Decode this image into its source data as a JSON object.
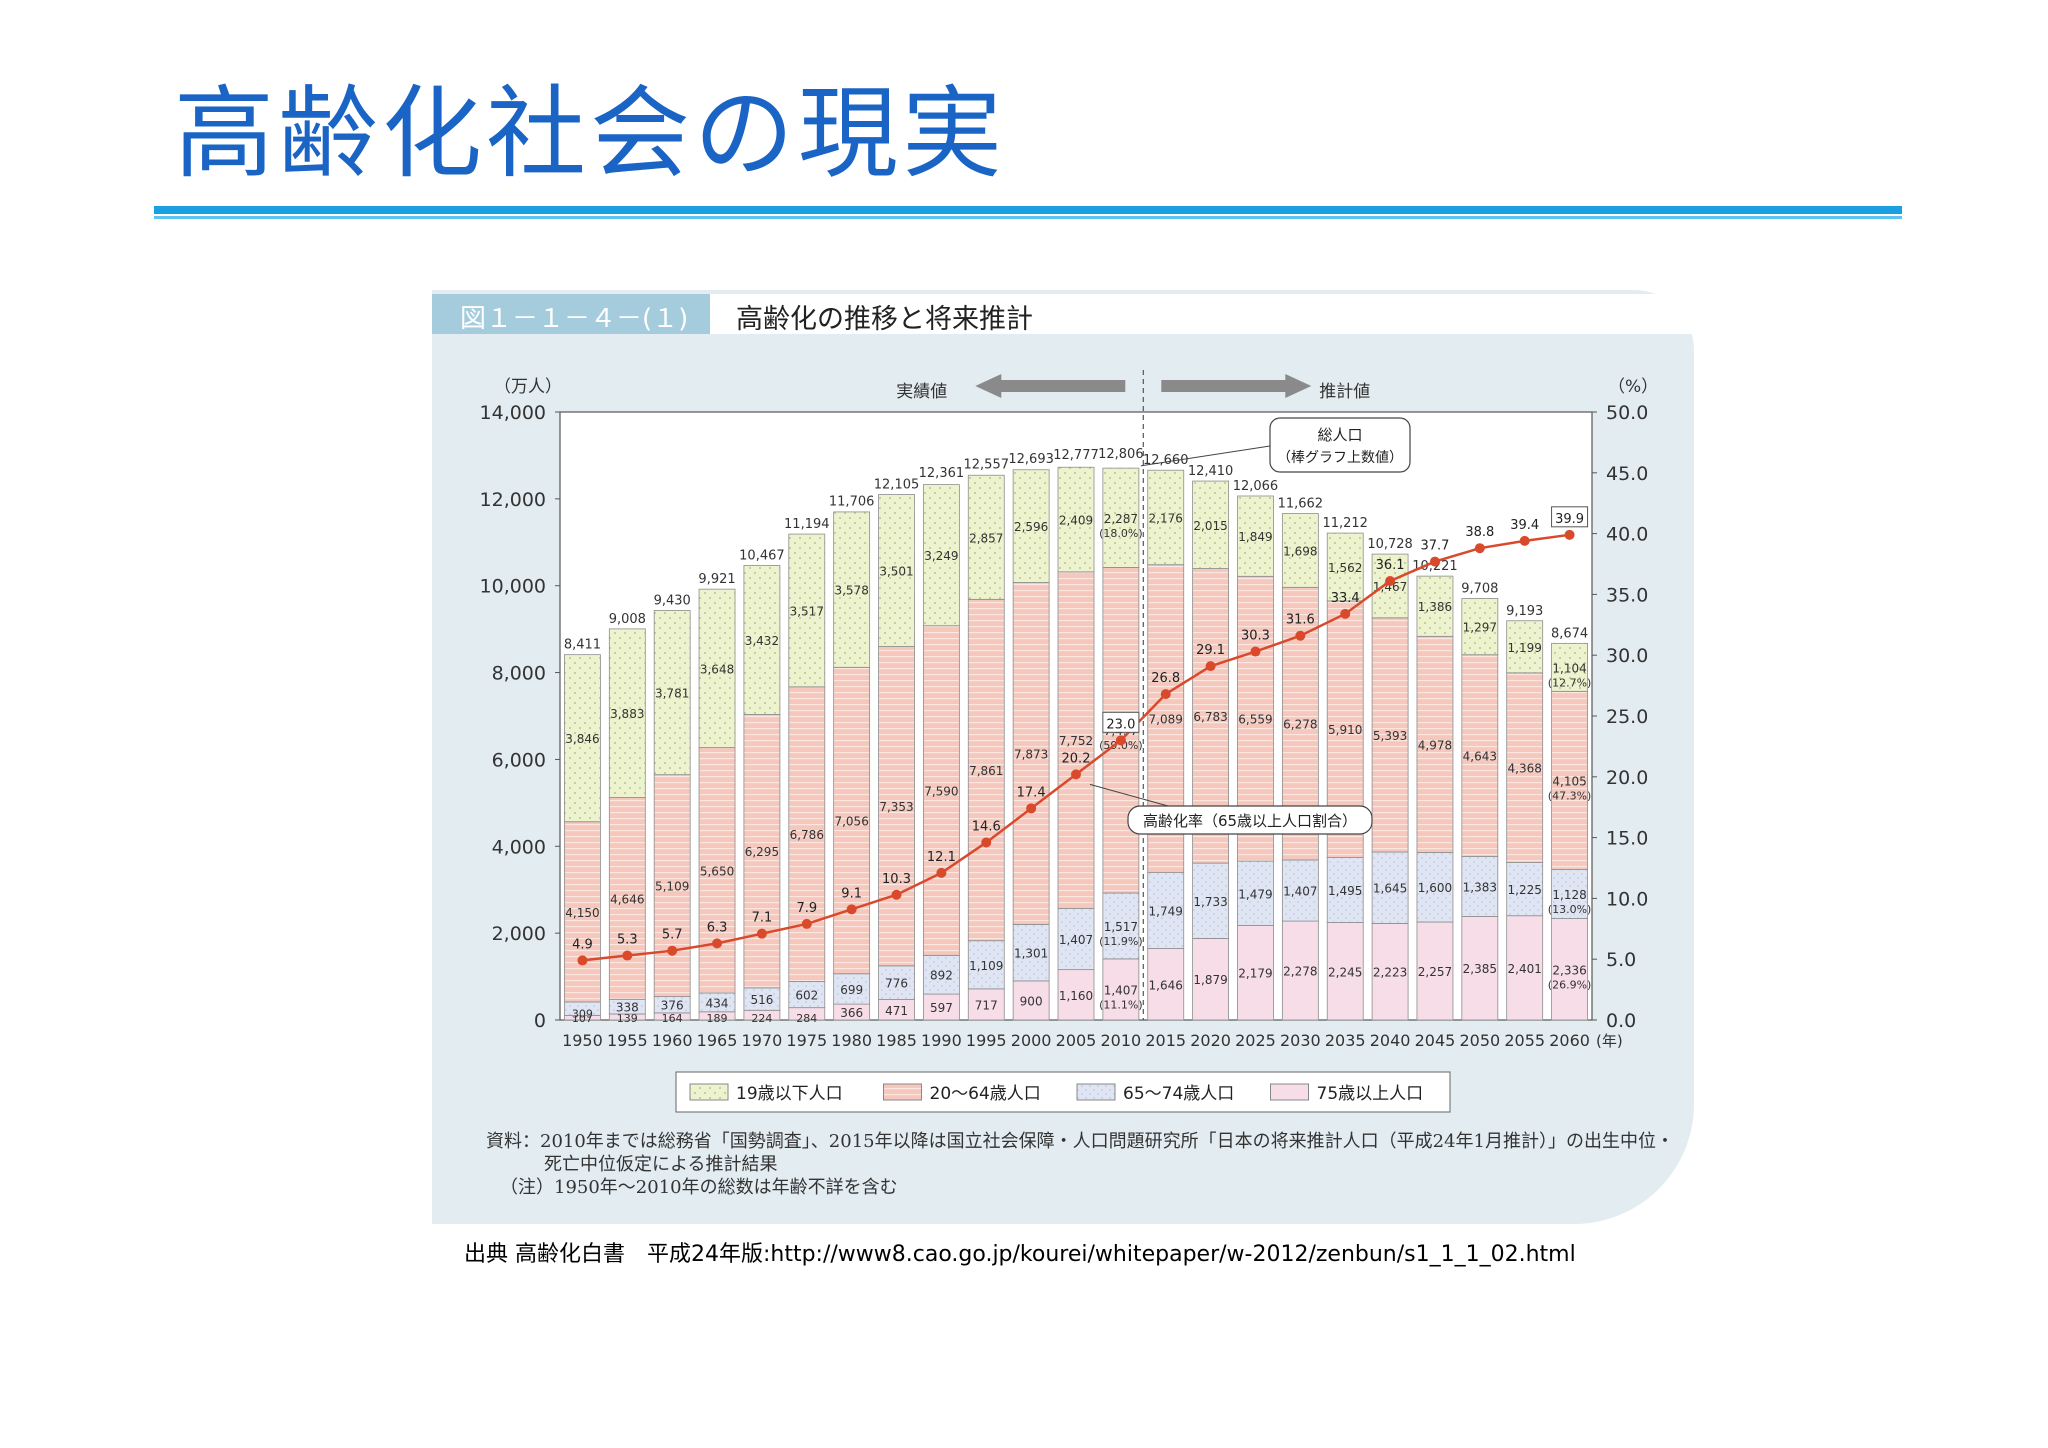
{
  "slide": {
    "title": "高齢化社会の現実",
    "citation": "出典 高齢化白書　平成24年版:http://www8.cao.go.jp/kourei/whitepaper/w-2012/zenbun/s1_1_1_02.html"
  },
  "figure": {
    "label": "図１－１－４－(１)",
    "title": "高齢化の推移と将来推計",
    "source_lines": [
      "資料：2010年までは総務省「国勢調査」、2015年以降は国立社会保障・人口問題研究所「日本の将来推計人口（平成24年1月推計）」の出生中位・",
      "死亡中位仮定による推計結果",
      "（注）1950年～2010年の総数は年齢不詳を含む"
    ]
  },
  "colors": {
    "under19": "#eef3cf",
    "age20_64": "#f5c7bd",
    "age65_74": "#dfe5f3",
    "age75plus": "#f6dde7",
    "rate_line": "#d94a2c",
    "arrow": "#8a8a8a",
    "tab_blue": "#a5ccdc",
    "title_blue": "#1a64c6",
    "rule_blue": "#1aa0e0"
  },
  "chart_data": {
    "type": "bar",
    "stacked": true,
    "y_left_unit": "（万人）",
    "y_right_unit": "（%）",
    "x_unit": "(年)",
    "ylim_left": [
      0,
      14000
    ],
    "ylim_right": [
      0,
      50
    ],
    "y_left_ticks": [
      "0",
      "2,000",
      "4,000",
      "6,000",
      "8,000",
      "10,000",
      "12,000",
      "14,000"
    ],
    "y_right_ticks": [
      "0.0",
      "5.0",
      "10.0",
      "15.0",
      "20.0",
      "25.0",
      "30.0",
      "35.0",
      "40.0",
      "45.0",
      "50.0"
    ],
    "categories": [
      "1950",
      "1955",
      "1960",
      "1965",
      "1970",
      "1975",
      "1980",
      "1985",
      "1990",
      "1995",
      "2000",
      "2005",
      "2010",
      "2015",
      "2020",
      "2025",
      "2030",
      "2035",
      "2040",
      "2045",
      "2050",
      "2055",
      "2060"
    ],
    "series": [
      {
        "name": "75歳以上人口",
        "values": [
          107,
          139,
          164,
          189,
          224,
          284,
          366,
          471,
          597,
          717,
          900,
          1160,
          1407,
          1646,
          1879,
          2179,
          2278,
          2245,
          2223,
          2257,
          2385,
          2401,
          2336
        ],
        "labels": [
          "107",
          "139",
          "164",
          "189",
          "224",
          "284",
          "366",
          "471",
          "597",
          "717",
          "900",
          "1,160",
          "1,407",
          "1,646",
          "1,879",
          "2,179",
          "2,278",
          "2,245",
          "2,223",
          "2,257",
          "2,385",
          "2,401",
          "2,336"
        ]
      },
      {
        "name": "65～74歳人口",
        "values": [
          309,
          338,
          376,
          434,
          516,
          602,
          699,
          776,
          892,
          1109,
          1301,
          1407,
          1517,
          1749,
          1733,
          1479,
          1407,
          1495,
          1645,
          1600,
          1383,
          1225,
          1128
        ],
        "labels": [
          "309",
          "338",
          "376",
          "434",
          "516",
          "602",
          "699",
          "776",
          "892",
          "1,109",
          "1,301",
          "1,407",
          "1,517",
          "1,749",
          "1,733",
          "1,479",
          "1,407",
          "1,495",
          "1,645",
          "1,600",
          "1,383",
          "1,225",
          "1,128"
        ]
      },
      {
        "name": "20～64歳人口",
        "values": [
          4150,
          4646,
          5109,
          5650,
          6295,
          6786,
          7056,
          7353,
          7590,
          7861,
          7873,
          7752,
          7497,
          7089,
          6783,
          6559,
          6278,
          5910,
          5393,
          4978,
          4643,
          4368,
          4105
        ],
        "labels": [
          "4,150",
          "4,646",
          "5,109",
          "5,650",
          "6,295",
          "6,786",
          "7,056",
          "7,353",
          "7,590",
          "7,861",
          "7,873",
          "7,752",
          "7,497",
          "7,089",
          "6,783",
          "6,559",
          "6,278",
          "5,910",
          "5,393",
          "4,978",
          "4,643",
          "4,368",
          "4,105"
        ]
      },
      {
        "name": "19歳以下人口",
        "values": [
          3846,
          3883,
          3781,
          3648,
          3432,
          3517,
          3578,
          3501,
          3249,
          2857,
          2596,
          2409,
          2287,
          2176,
          2015,
          1849,
          1698,
          1562,
          1467,
          1386,
          1297,
          1199,
          1104
        ],
        "labels": [
          "3,846",
          "3,883",
          "3,781",
          "3,648",
          "3,432",
          "3,517",
          "3,578",
          "3,501",
          "3,249",
          "2,857",
          "2,596",
          "2,409",
          "2,287",
          "2,176",
          "2,015",
          "1,849",
          "1,698",
          "1,562",
          "1,467",
          "1,386",
          "1,297",
          "1,199",
          "1,104"
        ]
      }
    ],
    "totals": [
      8411,
      9008,
      9430,
      9921,
      10467,
      11194,
      11706,
      12105,
      12361,
      12557,
      12693,
      12777,
      12806,
      12660,
      12410,
      12066,
      11662,
      11212,
      10728,
      10221,
      9708,
      9193,
      8674
    ],
    "total_labels": [
      "8,411",
      "9,008",
      "9,430",
      "9,921",
      "10,467",
      "11,194",
      "11,706",
      "12,105",
      "12,361",
      "12,557",
      "12,693",
      "12,777",
      "12,806",
      "12,660",
      "12,410",
      "12,066",
      "11,662",
      "11,212",
      "10,728",
      "10,221",
      "9,708",
      "9,193",
      "8,674"
    ],
    "aging_rate": {
      "name": "高齢化率（65歳以上人口割合）",
      "values": [
        4.9,
        5.3,
        5.7,
        6.3,
        7.1,
        7.9,
        9.1,
        10.3,
        12.1,
        14.6,
        17.4,
        20.2,
        23.0,
        26.8,
        29.1,
        30.3,
        31.6,
        33.4,
        36.1,
        37.7,
        38.8,
        39.4,
        39.9
      ],
      "labels": [
        "4.9",
        "5.3",
        "5.7",
        "6.3",
        "7.1",
        "7.9",
        "9.1",
        "10.3",
        "12.1",
        "14.6",
        "17.4",
        "20.2",
        "23.0",
        "26.8",
        "29.1",
        "30.3",
        "31.6",
        "33.4",
        "36.1",
        "37.7",
        "38.8",
        "39.4",
        "39.9"
      ]
    },
    "share_annotations": [
      {
        "category": "2010",
        "series": "19歳以下人口",
        "text": "(18.0%)"
      },
      {
        "category": "2010",
        "series": "20～64歳人口",
        "text": "(59.0%)"
      },
      {
        "category": "2010",
        "series": "65～74歳人口",
        "text": "(11.9%)"
      },
      {
        "category": "2010",
        "series": "75歳以上人口",
        "text": "(11.1%)"
      },
      {
        "category": "2060",
        "series": "19歳以下人口",
        "text": "(12.7%)"
      },
      {
        "category": "2060",
        "series": "20～64歳人口",
        "text": "(47.3%)"
      },
      {
        "category": "2060",
        "series": "65～74歳人口",
        "text": "(13.0%)"
      },
      {
        "category": "2060",
        "series": "75歳以上人口",
        "text": "(26.9%)"
      }
    ],
    "actual_label": "実績値",
    "projected_label": "推計値",
    "total_callout": [
      "総人口",
      "（棒グラフ上数値）"
    ],
    "rate_callout": "高齢化率（65歳以上人口割合）",
    "legend": [
      "19歳以下人口",
      "20～64歳人口",
      "65～74歳人口",
      "75歳以上人口"
    ],
    "legend_position": "bottom"
  }
}
